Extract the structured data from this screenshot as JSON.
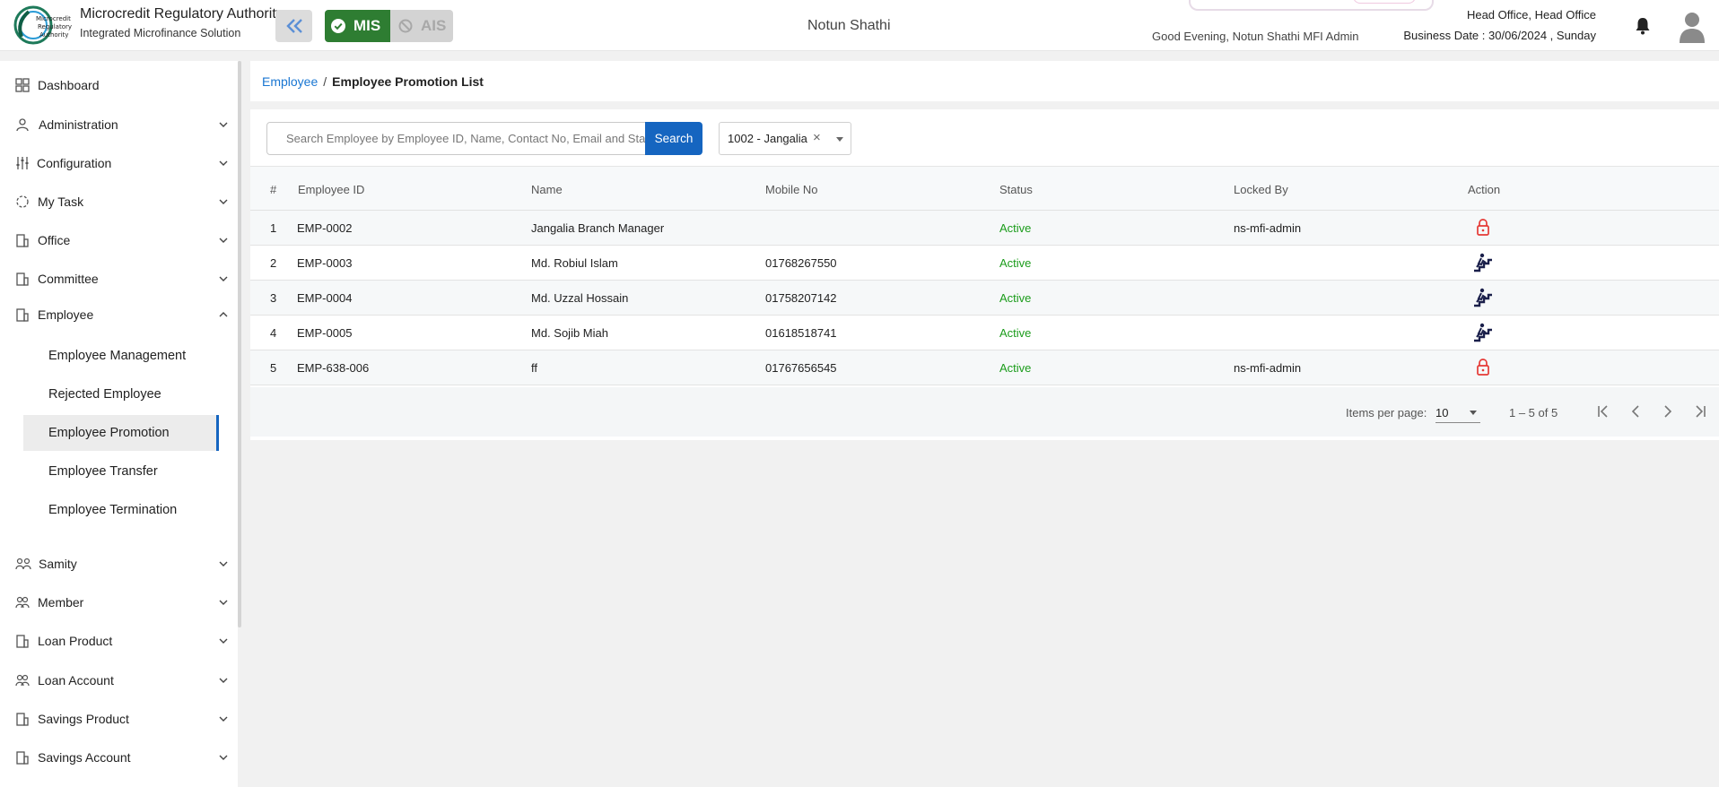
{
  "header": {
    "org_name": "Microcredit Regulatory Authority",
    "org_subtitle": "Integrated Microfinance Solution",
    "logo_text": "Microcredit Regulatory Authority",
    "module_mis": "MIS",
    "module_ais": "AIS",
    "mfi_name": "Notun Shathi",
    "greeting": "Good Evening, Notun Shathi MFI Admin",
    "office": "Head Office, Head Office",
    "business_date": "Business Date : 30/06/2024 , Sunday",
    "colors": {
      "mis_green": "#2e7d32",
      "primary_blue": "#1565c0",
      "logo_teal": "#1e7a5a"
    }
  },
  "sidebar": {
    "items": [
      {
        "label": "Dashboard",
        "icon": "dashboard-icon",
        "expandable": false
      },
      {
        "label": "Administration",
        "icon": "admin-icon",
        "expandable": true
      },
      {
        "label": "Configuration",
        "icon": "sliders-icon",
        "expandable": true
      },
      {
        "label": "My Task",
        "icon": "task-icon",
        "expandable": true
      },
      {
        "label": "Office",
        "icon": "office-icon",
        "expandable": true
      },
      {
        "label": "Committee",
        "icon": "committee-icon",
        "expandable": true
      },
      {
        "label": "Employee",
        "icon": "employee-icon",
        "expandable": true,
        "expanded": true
      }
    ],
    "employee_sub": [
      {
        "label": "Employee Management",
        "active": false
      },
      {
        "label": "Rejected Employee",
        "active": false
      },
      {
        "label": "Employee Promotion",
        "active": true
      },
      {
        "label": "Employee Transfer",
        "active": false
      },
      {
        "label": "Employee Termination",
        "active": false
      }
    ],
    "items_after": [
      {
        "label": "Samity",
        "icon": "samity-icon"
      },
      {
        "label": "Member",
        "icon": "member-icon"
      },
      {
        "label": "Loan Product",
        "icon": "loan-product-icon"
      },
      {
        "label": "Loan Account",
        "icon": "loan-account-icon"
      },
      {
        "label": "Savings Product",
        "icon": "savings-product-icon"
      },
      {
        "label": "Savings Account",
        "icon": "savings-account-icon"
      }
    ]
  },
  "breadcrumb": {
    "parent": "Employee",
    "separator": "/",
    "current": "Employee Promotion List"
  },
  "search": {
    "placeholder": "Search Employee by Employee ID, Name, Contact No, Email and Status",
    "button": "Search",
    "branch_value": "1002 - Jangalia",
    "clear_symbol": "×"
  },
  "table": {
    "columns": [
      "#",
      "Employee ID",
      "Name",
      "Mobile No",
      "Status",
      "Locked By",
      "Action"
    ],
    "rows": [
      {
        "idx": "1",
        "employee_id": "EMP-0002",
        "name": "Jangalia Branch Manager",
        "mobile": "",
        "status": "Active",
        "locked_by": "ns-mfi-admin",
        "action": "lock-icon"
      },
      {
        "idx": "2",
        "employee_id": "EMP-0003",
        "name": "Md. Robiul Islam",
        "mobile": "01768267550",
        "status": "Active",
        "locked_by": "",
        "action": "promotion-icon"
      },
      {
        "idx": "3",
        "employee_id": "EMP-0004",
        "name": "Md. Uzzal Hossain",
        "mobile": "01758207142",
        "status": "Active",
        "locked_by": "",
        "action": "promotion-icon"
      },
      {
        "idx": "4",
        "employee_id": "EMP-0005",
        "name": "Md. Sojib Miah",
        "mobile": "01618518741",
        "status": "Active",
        "locked_by": "",
        "action": "promotion-icon"
      },
      {
        "idx": "5",
        "employee_id": "EMP-638-006",
        "name": "ff",
        "mobile": "01767656545",
        "status": "Active",
        "locked_by": "ns-mfi-admin",
        "action": "lock-icon"
      }
    ]
  },
  "pagination": {
    "items_per_page_label": "Items per page:",
    "items_per_page": "10",
    "range": "1 – 5 of 5"
  }
}
